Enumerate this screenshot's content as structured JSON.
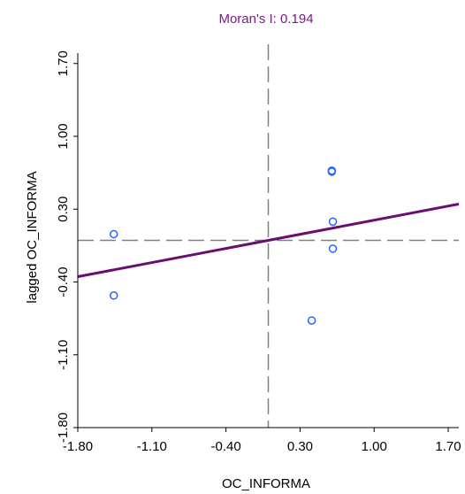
{
  "chart_data": {
    "type": "scatter",
    "title": "Moran's I: 0.194",
    "xlabel": "OC_INFORMA",
    "ylabel": "lagged OC_INFORMA",
    "xlim": [
      -1.8,
      1.8
    ],
    "ylim": [
      -1.8,
      1.8
    ],
    "x_ticks": [
      "-1.80",
      "-1.10",
      "-0.40",
      "0.30",
      "1.00",
      "1.70"
    ],
    "y_ticks": [
      "-1.80",
      "-1.10",
      "-0.40",
      "0.30",
      "1.00",
      "1.70"
    ],
    "x_tick_values": [
      -1.8,
      -1.1,
      -0.4,
      0.3,
      1.0,
      1.7
    ],
    "y_tick_values": [
      -1.8,
      -1.1,
      -0.4,
      0.3,
      1.0,
      1.7
    ],
    "points": [
      {
        "x": -1.46,
        "y": 0.06
      },
      {
        "x": -1.46,
        "y": -0.53
      },
      {
        "x": 0.41,
        "y": -0.77
      },
      {
        "x": 0.6,
        "y": 0.66
      },
      {
        "x": 0.6,
        "y": 0.67
      },
      {
        "x": 0.61,
        "y": 0.18
      },
      {
        "x": 0.61,
        "y": -0.08
      }
    ],
    "reference_lines": {
      "x_mean": 0.0,
      "y_mean": 0.0
    },
    "regression": {
      "slope": 0.194,
      "intercept": 0.0
    },
    "colors": {
      "title": "#7a1a8a",
      "regression_line": "#6a0f72",
      "points": "#2a64ff",
      "reference_lines": "#808080",
      "axes": "#000000"
    },
    "grid": false
  }
}
